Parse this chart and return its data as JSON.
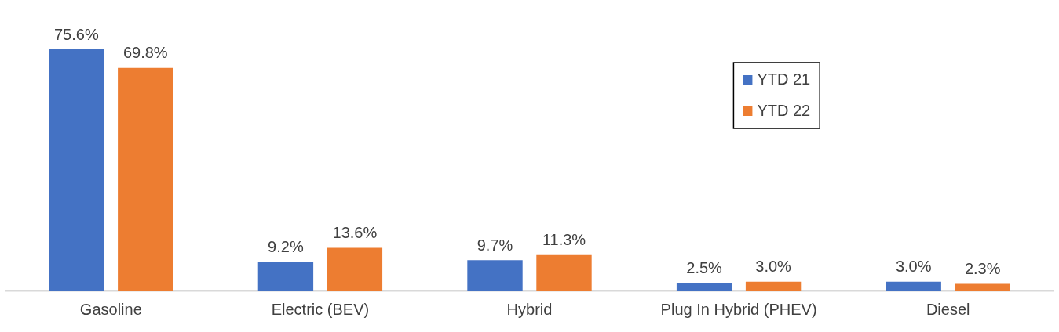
{
  "chart_data": {
    "type": "bar",
    "categories": [
      "Gasoline",
      "Electric (BEV)",
      "Hybrid",
      "Plug In Hybrid (PHEV)",
      "Diesel"
    ],
    "series": [
      {
        "name": "YTD 21",
        "color": "#4472c4",
        "values": [
          75.6,
          9.2,
          9.7,
          2.5,
          3.0
        ],
        "value_labels": [
          "75.6%",
          "9.2%",
          "9.7%",
          "2.5%",
          "3.0%"
        ]
      },
      {
        "name": "YTD 22",
        "color": "#ed7d31",
        "values": [
          69.8,
          13.6,
          11.3,
          3.0,
          2.3
        ],
        "value_labels": [
          "69.8%",
          "13.6%",
          "11.3%",
          "3.0%",
          "2.3%"
        ]
      }
    ],
    "legend": "top right",
    "grid": false
  }
}
